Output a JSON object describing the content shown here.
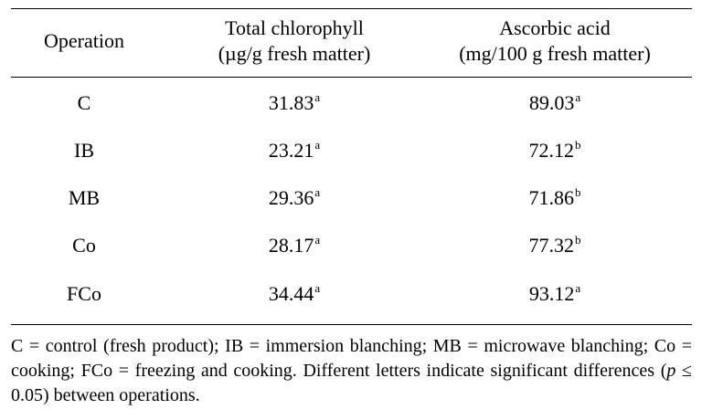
{
  "table": {
    "headers": {
      "operation": "Operation",
      "chlorophyll_line1": "Total chlorophyll",
      "chlorophyll_line2": "(µg/g fresh matter)",
      "ascorbic_line1": "Ascorbic acid",
      "ascorbic_line2": "(mg/100 g fresh matter)"
    },
    "rows": [
      {
        "operation": "C",
        "chlorophyll": "31.83",
        "chlorophyll_sup": "a",
        "ascorbic": "89.03",
        "ascorbic_sup": "a"
      },
      {
        "operation": "IB",
        "chlorophyll": "23.21",
        "chlorophyll_sup": "a",
        "ascorbic": "72.12",
        "ascorbic_sup": "b"
      },
      {
        "operation": "MB",
        "chlorophyll": "29.36",
        "chlorophyll_sup": "a",
        "ascorbic": "71.86",
        "ascorbic_sup": "b"
      },
      {
        "operation": "Co",
        "chlorophyll": "28.17",
        "chlorophyll_sup": "a",
        "ascorbic": "77.32",
        "ascorbic_sup": "b"
      },
      {
        "operation": "FCo",
        "chlorophyll": "34.44",
        "chlorophyll_sup": "a",
        "ascorbic": "93.12",
        "ascorbic_sup": "a"
      }
    ]
  },
  "footnote": {
    "part1": "C = control (fresh product); IB = immersion blanching; MB = microwave blanching; Co = cooking; FCo = freezing and cooking. Different letters indicate significant differences (",
    "p_symbol": "p",
    "part2": " ≤ 0.05) between operations."
  }
}
